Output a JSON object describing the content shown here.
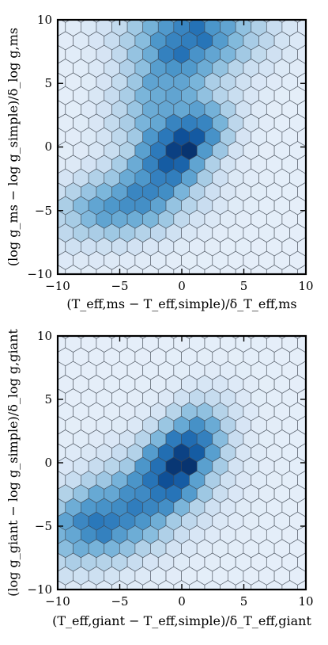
{
  "chart_data": [
    {
      "type": "heatmap",
      "subtype": "hexbin",
      "colormap": "Blues",
      "xlabel": "(T_eff,ms − T_eff,simple)/δ_T_eff,ms",
      "ylabel": "(log g_ms − log g_simple)/δ_log g,ms",
      "xlim": [
        -10,
        10
      ],
      "ylim": [
        -10,
        10
      ],
      "x_ticks": [
        "−10",
        "−5",
        "0",
        "5",
        "10"
      ],
      "y_ticks": [
        "−10",
        "−5",
        "0",
        "5",
        "10"
      ],
      "grid": false,
      "density_components": [
        {
          "x": 0.0,
          "y": 0.0,
          "sx": 2.2,
          "sy": 2.0,
          "rho": 0.5,
          "weight": 1.0
        },
        {
          "x": -4.5,
          "y": -4.5,
          "sx": 3.5,
          "sy": 1.8,
          "rho": 0.3,
          "weight": 0.55
        },
        {
          "x": 1.0,
          "y": 9.0,
          "sx": 3.5,
          "sy": 2.0,
          "rho": 0.0,
          "weight": 0.6
        },
        {
          "x": -1.5,
          "y": 4.5,
          "sx": 2.5,
          "sy": 3.0,
          "rho": 0.4,
          "weight": 0.45
        }
      ]
    },
    {
      "type": "heatmap",
      "subtype": "hexbin",
      "colormap": "Blues",
      "xlabel": "(T_eff,giant − T_eff,simple)/δ_T_eff,giant",
      "ylabel": "(log g_giant − log g_simple)/δ_log g,giant",
      "xlim": [
        -10,
        10
      ],
      "ylim": [
        -10,
        10
      ],
      "x_ticks": [
        "−10",
        "−5",
        "0",
        "5",
        "10"
      ],
      "y_ticks": [
        "−10",
        "−5",
        "0",
        "5",
        "10"
      ],
      "grid": false,
      "density_components": [
        {
          "x": 0.0,
          "y": 0.5,
          "sx": 2.0,
          "sy": 2.3,
          "rho": 0.45,
          "weight": 1.0
        },
        {
          "x": -7.0,
          "y": -5.0,
          "sx": 3.0,
          "sy": 2.0,
          "rho": 0.2,
          "weight": 0.55
        },
        {
          "x": -3.0,
          "y": -2.5,
          "sx": 3.5,
          "sy": 2.5,
          "rho": 0.3,
          "weight": 0.35
        }
      ]
    }
  ]
}
